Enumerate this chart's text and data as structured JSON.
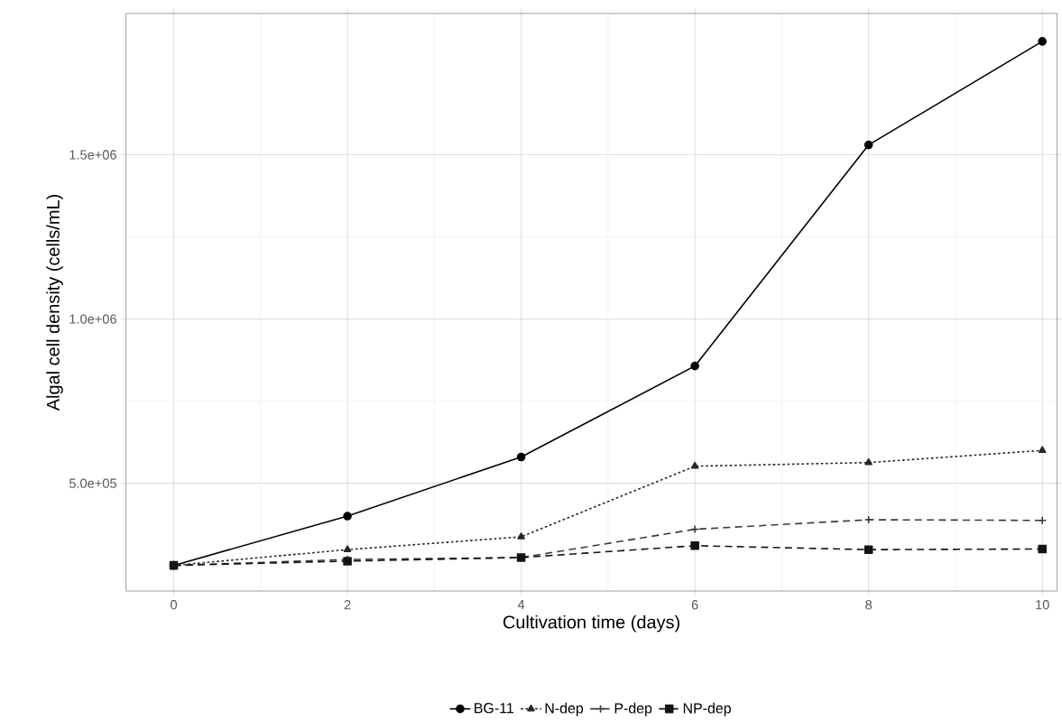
{
  "chart_data": {
    "type": "line",
    "xlabel": "Cultivation time (days)",
    "ylabel": "Algal cell density (cells/mL)",
    "x": [
      0,
      2,
      4,
      6,
      8,
      10
    ],
    "series": [
      {
        "name": "BG-11",
        "color": "#000000",
        "marker": "circle",
        "line_style": "solid",
        "values": [
          250000,
          400000,
          580000,
          857000,
          1530000,
          1845000
        ]
      },
      {
        "name": "N-dep",
        "color": "#262626",
        "marker": "triangle",
        "line_style": "dotted",
        "values": [
          250000,
          298000,
          337000,
          552000,
          563000,
          600000
        ]
      },
      {
        "name": "P-dep",
        "color": "#3a3a3a",
        "marker": "cross",
        "line_style": "dashed",
        "values": [
          250000,
          268000,
          274000,
          360000,
          389000,
          387000
        ]
      },
      {
        "name": "NP-dep",
        "color": "#141414",
        "marker": "square",
        "line_style": "dashed",
        "values": [
          250000,
          263000,
          274000,
          310000,
          298000,
          300000
        ]
      }
    ],
    "xlim": [
      -0.55,
      10.17
    ],
    "ylim": [
      172000,
      1930000
    ],
    "xticks": [
      0,
      2,
      4,
      6,
      8,
      10
    ],
    "yticks": [
      {
        "value": 500000,
        "label": "5.0e+05"
      },
      {
        "value": 1000000,
        "label": "1.0e+06"
      },
      {
        "value": 1500000,
        "label": "1.5e+06"
      }
    ],
    "grid": true,
    "legend": "bottom"
  }
}
